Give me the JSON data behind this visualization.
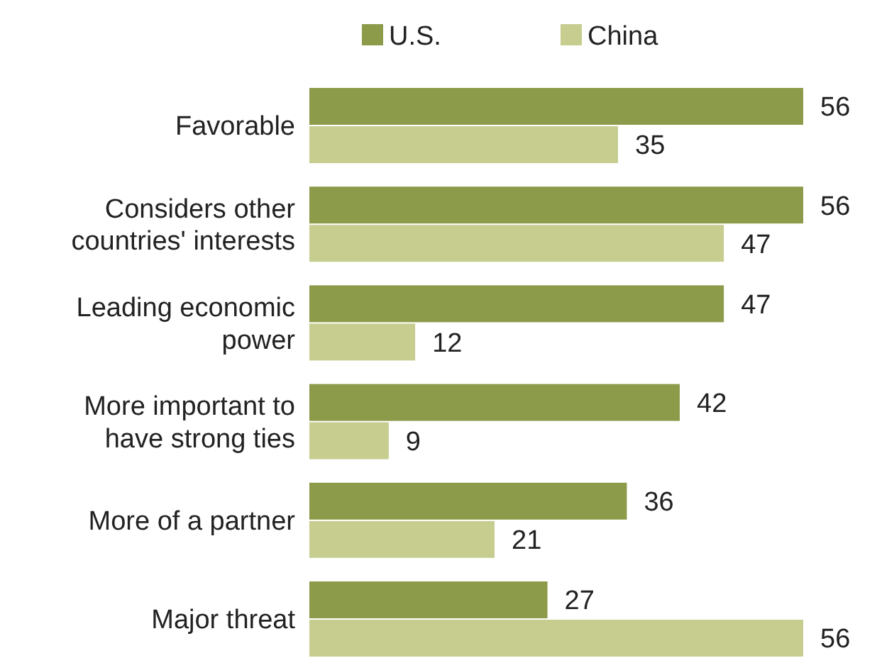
{
  "chart_data": {
    "type": "bar",
    "orientation": "horizontal",
    "data_labels": true,
    "legend": "top",
    "categories": [
      "Favorable",
      "Considers other\ncountries' interests",
      "Leading economic\npower",
      "More important to\nhave strong ties",
      "More of a partner",
      "Major threat"
    ],
    "series": [
      {
        "name": "U.S.",
        "color": "#8c9b4a",
        "values": [
          56,
          56,
          47,
          42,
          36,
          27
        ]
      },
      {
        "name": "China",
        "color": "#c6cd8f",
        "values": [
          35,
          47,
          12,
          9,
          21,
          56
        ]
      }
    ]
  }
}
